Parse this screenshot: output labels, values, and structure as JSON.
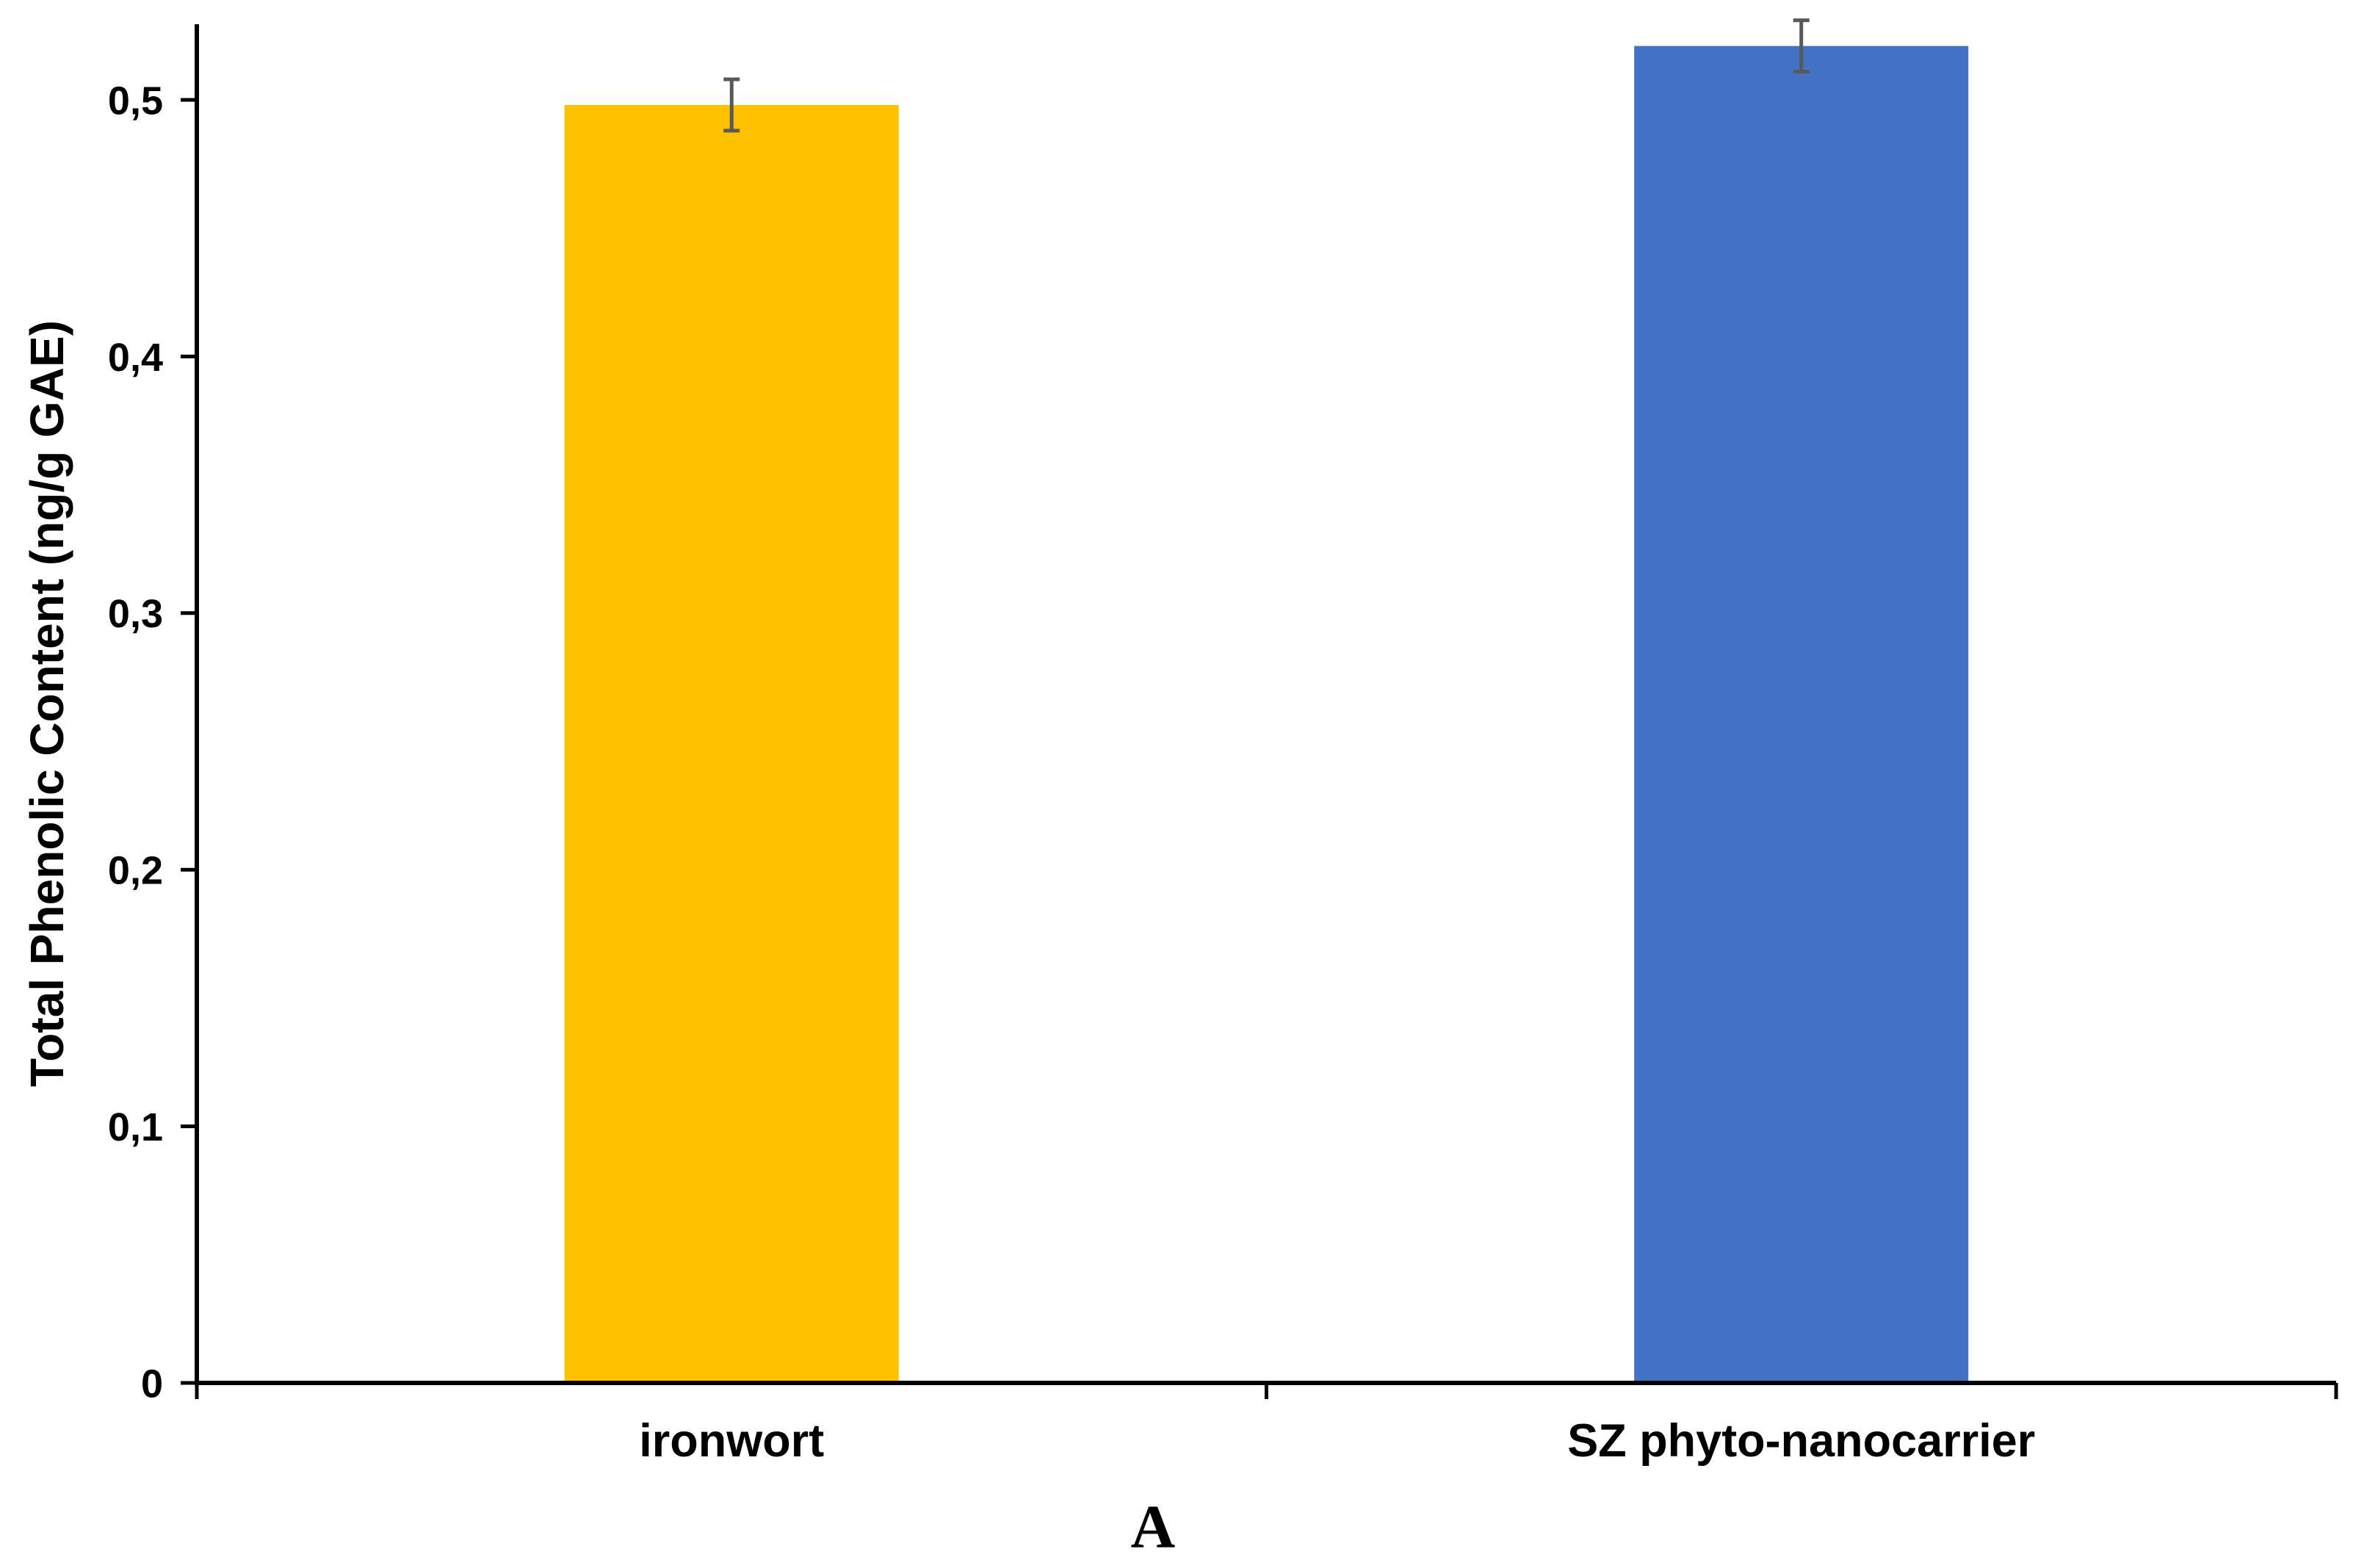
{
  "figure": {
    "panel_label": "A"
  },
  "chart_data": {
    "type": "bar",
    "title": "",
    "categories": [
      "ironwort",
      "SZ phyto-nanocarrier"
    ],
    "values": [
      0.498,
      0.521
    ],
    "errors": [
      0.01,
      0.01
    ],
    "bar_colors": [
      "#FFC000",
      "#4472C4"
    ],
    "error_bar_color": "#595959",
    "axis_color": "#000000",
    "xlabel": "",
    "ylabel": "Total Phenolic Content (ng/g GAE)",
    "ylim": [
      0,
      0.531
    ],
    "ytick_values": [
      0,
      0.1,
      0.2,
      0.3,
      0.4,
      0.5
    ],
    "ytick_labels": [
      "0",
      "0,1",
      "0,2",
      "0,3",
      "0,4",
      "0,5"
    ],
    "decimal_separator": ",",
    "grid": false,
    "legend": "none",
    "background": "#ffffff"
  }
}
